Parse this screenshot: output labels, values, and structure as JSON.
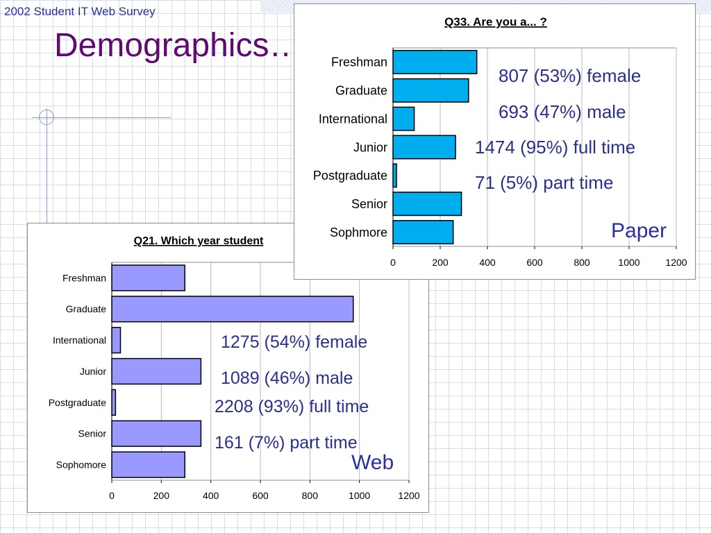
{
  "header": {
    "survey_title": "2002 Student IT Web Survey",
    "page_title": "Demographics…"
  },
  "colors": {
    "paper_bar": "#00aeef",
    "web_bar": "#9999ff",
    "title_purple": "#5e0a6e",
    "text_blue": "#2a2f8a"
  },
  "paper": {
    "label": "Paper",
    "stats": [
      "807 (53%) female",
      "693 (47%) male",
      "1474 (95%) full time",
      "71 (5%) part time"
    ]
  },
  "web": {
    "label": "Web",
    "stats": [
      "1275 (54%) female",
      "1089 (46%) male",
      "2208 (93%) full time",
      "161 (7%) part time"
    ]
  },
  "chart_data": [
    {
      "id": "paper",
      "type": "bar",
      "orientation": "horizontal",
      "title": "Q33. Are you a... ?",
      "categories": [
        "Freshman",
        "Graduate",
        "International",
        "Junior",
        "Postgraduate",
        "Senior",
        "Sophmore"
      ],
      "values": [
        355,
        320,
        90,
        265,
        15,
        290,
        255
      ],
      "xlim": [
        0,
        1200
      ],
      "xticks": [
        0,
        200,
        400,
        600,
        800,
        1000,
        1200
      ],
      "grid": true,
      "bar_color": "#00aeef"
    },
    {
      "id": "web",
      "type": "bar",
      "orientation": "horizontal",
      "title": "Q21. Which year student",
      "categories": [
        "Freshman",
        "Graduate",
        "International",
        "Junior",
        "Postgraduate",
        "Senior",
        "Sophomore"
      ],
      "values": [
        295,
        975,
        35,
        360,
        15,
        360,
        295
      ],
      "xlim": [
        0,
        1200
      ],
      "xticks": [
        0,
        200,
        400,
        600,
        800,
        1000,
        1200
      ],
      "grid": true,
      "bar_color": "#9999ff"
    }
  ]
}
